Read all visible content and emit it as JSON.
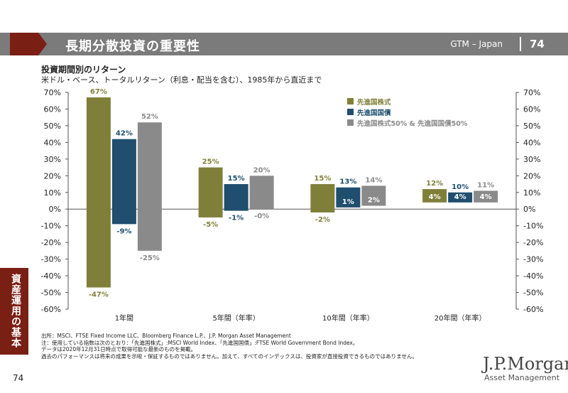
{
  "header": {
    "title": "長期分散投資の重要性",
    "right_label": "GTM – Japan",
    "page": "74"
  },
  "side_tab": "資産運用の基本",
  "page_number": "74",
  "logo": {
    "name": "J.P.Morgan",
    "sub": "Asset Management"
  },
  "footnotes": [
    "出所：MSCI、FTSE Fixed Income LLC、Bloomberg Finance L.P.、J.P. Morgan Asset Management",
    "注：使用している指数は次のとおり：「先進国株式」:MSCI World Index、「先進国国債」:FTSE World Government Bond Index。",
    "データは2020年12月31日時点で取得可能な最新のものを掲載。",
    "過去のパフォーマンスは将来の成果を示唆・保証するものではありません。加えて、すべてのインデックスは、投資家が直接投資できるものではありません。"
  ],
  "chart_data": {
    "type": "bar",
    "title": "投資期間別のリターン",
    "subtitle": "米ドル・ベース、トータルリターン（利息・配当を含む）、1985年から直近まで",
    "categories": [
      "1年間",
      "5年間（年率）",
      "10年間（年率）",
      "20年間（年率）"
    ],
    "ylim": [
      -60,
      70
    ],
    "yticks": [
      "70%",
      "60%",
      "50%",
      "40%",
      "30%",
      "20%",
      "10%",
      "0%",
      "-10%",
      "-20%",
      "-30%",
      "-40%",
      "-50%",
      "-60%"
    ],
    "series": [
      {
        "name": "先進国株式",
        "color": "#7f7f3a",
        "max": [
          67,
          25,
          15,
          12
        ],
        "min": [
          -47,
          -5,
          -2,
          4
        ],
        "max_labels": [
          "67%",
          "25%",
          "15%",
          "12%"
        ],
        "min_labels": [
          "-47%",
          "-5%",
          "-2%",
          "4%"
        ]
      },
      {
        "name": "先進国国債",
        "color": "#1f4e6e",
        "max": [
          42,
          15,
          13,
          10
        ],
        "min": [
          -9,
          -1,
          1,
          4
        ],
        "max_labels": [
          "42%",
          "15%",
          "13%",
          "10%"
        ],
        "min_labels": [
          "-9%",
          "-1%",
          "1%",
          "4%"
        ]
      },
      {
        "name": "先進国株式50% & 先進国国債50%",
        "color": "#8a8a8a",
        "max": [
          52,
          20,
          14,
          11
        ],
        "min": [
          -25,
          0,
          2,
          4
        ],
        "max_labels": [
          "52%",
          "20%",
          "14%",
          "11%"
        ],
        "min_labels": [
          "-25%",
          "-0%",
          "2%",
          "4%"
        ]
      }
    ],
    "legend_position": "top-right"
  }
}
